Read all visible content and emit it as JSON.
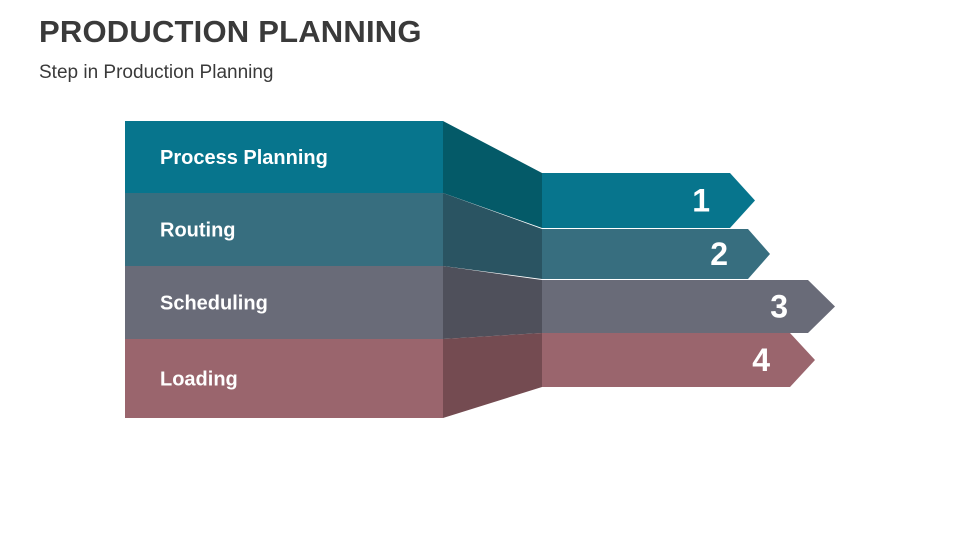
{
  "title": "PRODUCTION PLANNING",
  "subtitle": "Step in Production Planning",
  "steps": [
    {
      "label": "Process Planning",
      "number": "1",
      "color": "#07758D",
      "dark": "#045A68"
    },
    {
      "label": "Routing",
      "number": "2",
      "color": "#376E7F",
      "dark": "#2A5462"
    },
    {
      "label": "Scheduling",
      "number": "3",
      "color": "#696B78",
      "dark": "#4F505B"
    },
    {
      "label": "Loading",
      "number": "4",
      "color": "#9A656D",
      "dark": "#744B51"
    }
  ]
}
